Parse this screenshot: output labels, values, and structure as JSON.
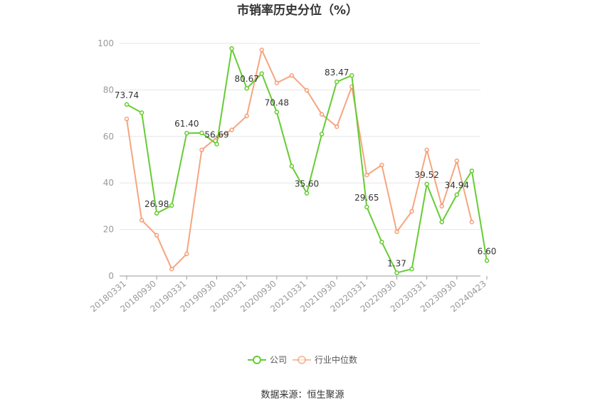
{
  "chart_data": {
    "type": "line",
    "title": "市销率历史分位（%）",
    "source": "数据来源：恒生聚源",
    "ylim": [
      0,
      100
    ],
    "yticks": [
      0,
      20,
      40,
      60,
      80,
      100
    ],
    "xtick_labels": [
      "20180331",
      "20180930",
      "20190331",
      "20190930",
      "20200331",
      "20200930",
      "20210331",
      "20210930",
      "20220331",
      "20220930",
      "20230331",
      "20230930",
      "20240423"
    ],
    "legend_position": "bottom",
    "grid": true,
    "series": [
      {
        "name": "公司",
        "color": "#66cc33",
        "values": [
          73.74,
          70.2,
          26.98,
          30.3,
          61.4,
          61.5,
          56.69,
          97.8,
          80.67,
          87.0,
          70.48,
          47.2,
          35.6,
          61.0,
          83.47,
          86.2,
          29.65,
          14.6,
          1.37,
          3.0,
          39.52,
          23.2,
          34.94,
          45.2,
          6.6
        ],
        "labels": {
          "0": "73.74",
          "2": "26.98",
          "4": "61.40",
          "6": "56.69",
          "8": "80.67",
          "10": "70.48",
          "12": "35.60",
          "14": "83.47",
          "16": "29.65",
          "18": "1.37",
          "20": "39.52",
          "22": "34.94",
          "24": "6.60"
        }
      },
      {
        "name": "行业中位数",
        "color": "#f4956a",
        "values": [
          67.5,
          24.0,
          17.5,
          3.0,
          9.5,
          54.2,
          59.5,
          62.8,
          68.8,
          97.2,
          83.0,
          86.2,
          79.8,
          69.5,
          64.2,
          81.4,
          43.4,
          47.7,
          19.0,
          27.8,
          54.2,
          30.0,
          49.5,
          23.2,
          null
        ]
      }
    ]
  }
}
